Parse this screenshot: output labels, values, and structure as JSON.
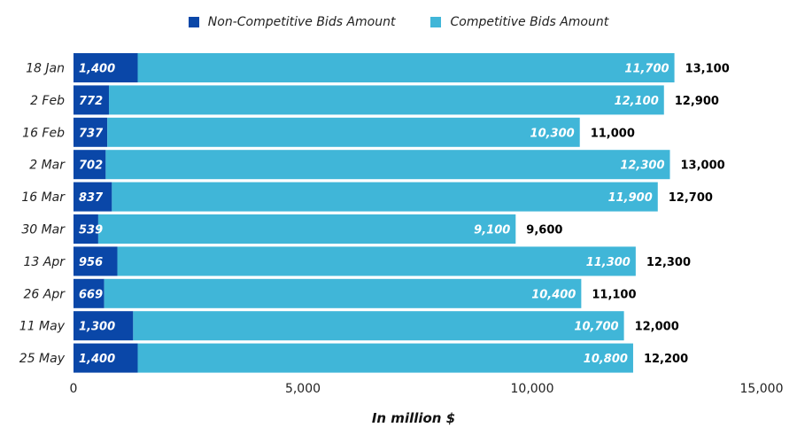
{
  "chart_data": {
    "type": "bar",
    "orientation": "horizontal",
    "stacked": true,
    "categories": [
      "18 Jan",
      "2 Feb",
      "16 Feb",
      "2 Mar",
      "16 Mar",
      "30 Mar",
      "13 Apr",
      "26 Apr",
      "11 May",
      "25 May"
    ],
    "series": [
      {
        "name": "Non-Competitive Bids Amount",
        "values": [
          1400,
          772,
          737,
          702,
          837,
          539,
          956,
          669,
          1300,
          1400
        ],
        "labels": [
          "1,400",
          "772",
          "737",
          "702",
          "837",
          "539",
          "956",
          "669",
          "1,300",
          "1,400"
        ],
        "color": "#0a47a8"
      },
      {
        "name": "Competitive Bids Amount",
        "values": [
          11700,
          12100,
          10300,
          12300,
          11900,
          9100,
          11300,
          10400,
          10700,
          10800
        ],
        "labels": [
          "11,700",
          "12,100",
          "10,300",
          "12,300",
          "11,900",
          "9,100",
          "11,300",
          "10,400",
          "10,700",
          "10,800"
        ],
        "color": "#40b6d8"
      }
    ],
    "totals": [
      13100,
      12900,
      11000,
      13000,
      12700,
      9600,
      12300,
      11100,
      12000,
      12200
    ],
    "total_labels": [
      "13,100",
      "12,900",
      "11,000",
      "13,000",
      "12,700",
      "9,600",
      "12,300",
      "11,100",
      "12,000",
      "12,200"
    ],
    "xlim": [
      0,
      15000
    ],
    "xticks": [
      0,
      5000,
      10000,
      15000
    ],
    "xtick_labels": [
      "0",
      "5,000",
      "10,000",
      "15,000"
    ],
    "xlabel": "In million $",
    "legend_position": "top-center",
    "grid": false
  }
}
